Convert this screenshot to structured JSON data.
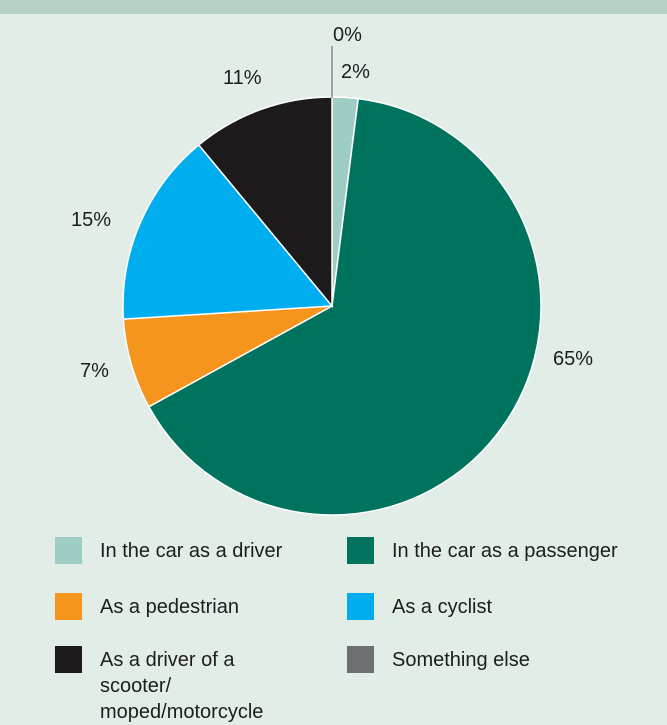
{
  "chart_data": {
    "type": "pie",
    "categories": [
      "In the car as a driver",
      "In the car as a passenger",
      "As a pedestrian",
      "As a cyclist",
      "As a driver of a scooter/ moped/motorcycle",
      "Something else"
    ],
    "values": [
      2,
      65,
      7,
      15,
      11,
      0
    ],
    "value_labels": [
      "2%",
      "65%",
      "7%",
      "15%",
      "11%",
      "0%"
    ],
    "colors": [
      "#9ecdc4",
      "#00735e",
      "#f5951d",
      "#00adee",
      "#1c1a1b",
      "#6e6f71"
    ],
    "start_angle": "12 o'clock",
    "direction": "clockwise",
    "legend_placement": "bottom"
  },
  "legend": {
    "items": [
      {
        "label": "In the car as a driver",
        "color": "#9ecdc4"
      },
      {
        "label": "In the car as a passenger",
        "color": "#00735e"
      },
      {
        "label": "As a pedestrian",
        "color": "#f5951d"
      },
      {
        "label": "As a cyclist",
        "color": "#00adee"
      },
      {
        "label": "As a driver of a scooter/\nmoped/motorcycle",
        "color": "#1c1a1b"
      },
      {
        "label": "Something else",
        "color": "#6e6f71"
      }
    ]
  }
}
